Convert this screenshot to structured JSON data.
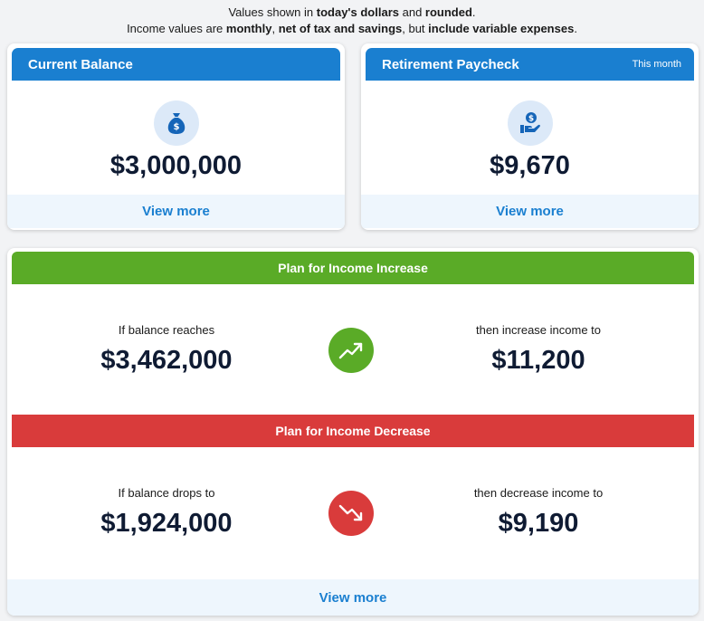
{
  "notice": {
    "line1_a": "Values shown in ",
    "line1_b": "today's dollars",
    "line1_c": " and ",
    "line1_d": "rounded",
    "line1_e": ".",
    "line2_a": "Income values are ",
    "line2_b": "monthly",
    "line2_c": ", ",
    "line2_d": "net of tax and savings",
    "line2_e": ", but ",
    "line2_f": "include variable expenses",
    "line2_g": "."
  },
  "current_balance": {
    "title": "Current Balance",
    "value": "$3,000,000",
    "icon": "money-bag-icon",
    "view_more": "View more"
  },
  "retirement_paycheck": {
    "title": "Retirement Paycheck",
    "subtitle": "This month",
    "value": "$9,670",
    "icon": "hand-coin-icon",
    "view_more": "View more"
  },
  "plan": {
    "increase": {
      "title": "Plan for Income Increase",
      "left_label": "If balance reaches",
      "left_value": "$3,462,000",
      "right_label": "then increase income to",
      "right_value": "$11,200",
      "icon": "trend-up-icon"
    },
    "decrease": {
      "title": "Plan for Income Decrease",
      "left_label": "If balance drops to",
      "left_value": "$1,924,000",
      "right_label": "then decrease income to",
      "right_value": "$9,190",
      "icon": "trend-down-icon"
    },
    "view_more": "View more"
  },
  "colors": {
    "blue": "#1a7fd0",
    "green": "#5aab27",
    "red": "#d93b3b",
    "navy": "#0f1b33"
  }
}
